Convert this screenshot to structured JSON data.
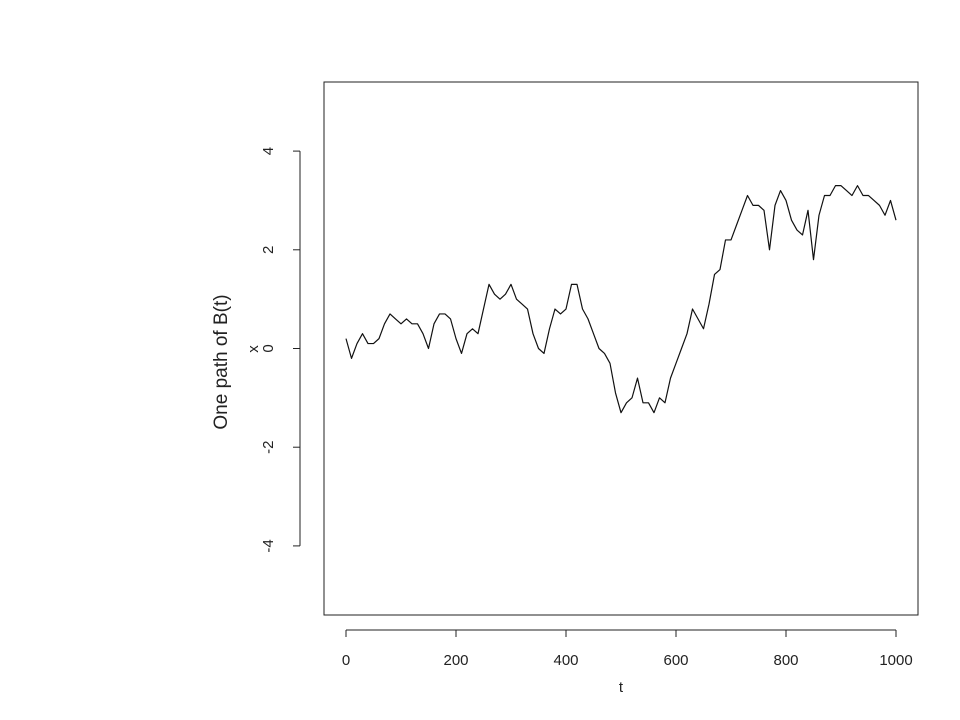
{
  "chart_data": {
    "type": "line",
    "annotation": "One path of B(t)",
    "x_label": "t",
    "y_label": "x",
    "x": [
      0,
      10,
      20,
      30,
      40,
      50,
      60,
      70,
      80,
      90,
      100,
      110,
      120,
      130,
      140,
      150,
      160,
      170,
      180,
      190,
      200,
      210,
      220,
      230,
      240,
      250,
      260,
      270,
      280,
      290,
      300,
      310,
      320,
      330,
      340,
      350,
      360,
      370,
      380,
      390,
      400,
      410,
      420,
      430,
      440,
      450,
      460,
      470,
      480,
      490,
      500,
      510,
      520,
      530,
      540,
      550,
      560,
      570,
      580,
      590,
      600,
      610,
      620,
      630,
      640,
      650,
      660,
      670,
      680,
      690,
      700,
      710,
      720,
      730,
      740,
      750,
      760,
      770,
      780,
      790,
      800,
      810,
      820,
      830,
      840,
      850,
      860,
      870,
      880,
      890,
      900,
      910,
      920,
      930,
      940,
      950,
      960,
      970,
      980,
      990,
      1000
    ],
    "series": [
      {
        "name": "x",
        "color": "#111111",
        "values": [
          0.2,
          -0.2,
          0.1,
          0.3,
          0.1,
          0.1,
          0.2,
          0.5,
          0.7,
          0.6,
          0.5,
          0.6,
          0.5,
          0.5,
          0.3,
          0.0,
          0.5,
          0.7,
          0.7,
          0.6,
          0.2,
          -0.1,
          0.3,
          0.4,
          0.3,
          0.8,
          1.3,
          1.1,
          1.0,
          1.1,
          1.3,
          1.0,
          0.9,
          0.8,
          0.3,
          0.0,
          -0.1,
          0.4,
          0.8,
          0.7,
          0.8,
          1.3,
          1.3,
          0.8,
          0.6,
          0.3,
          0.0,
          -0.1,
          -0.3,
          -0.9,
          -1.3,
          -1.1,
          -1.0,
          -0.6,
          -1.1,
          -1.1,
          -1.3,
          -1.0,
          -1.1,
          -0.6,
          -0.3,
          0.0,
          0.3,
          0.8,
          0.6,
          0.4,
          0.9,
          1.5,
          1.6,
          2.2,
          2.2,
          2.5,
          2.8,
          3.1,
          2.9,
          2.9,
          2.8,
          2.0,
          2.9,
          3.2,
          3.0,
          2.6,
          2.4,
          2.3,
          2.8,
          1.8,
          2.7,
          3.1,
          3.1,
          3.3,
          3.3,
          3.2,
          3.1,
          3.3,
          3.1,
          3.1,
          3.0,
          2.9,
          2.7,
          3.0,
          2.6
        ]
      }
    ],
    "xlim": [
      -40,
      1040
    ],
    "ylim": [
      -5.4,
      5.4
    ],
    "xticks": [
      0,
      200,
      400,
      600,
      800,
      1000
    ],
    "yticks": [
      -4,
      -2,
      0,
      2,
      4
    ]
  }
}
